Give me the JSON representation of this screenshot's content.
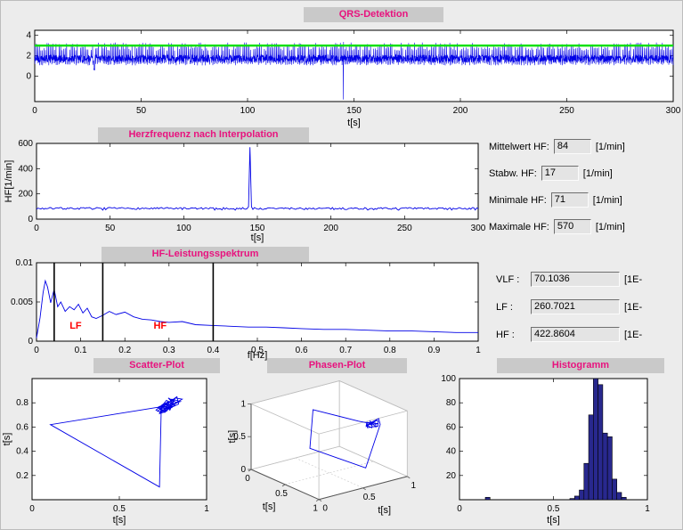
{
  "window": {
    "background": "#ececec",
    "title_strip_bg": "#c9c9c9",
    "title_color": "#e8127e"
  },
  "stats_panel": {
    "rows": [
      {
        "label": "Mittelwert HF:",
        "value": "84",
        "unit": "[1/min]"
      },
      {
        "label": "Stabw. HF:",
        "value": "17",
        "unit": "[1/min]"
      },
      {
        "label": "Minimale HF:",
        "value": "71",
        "unit": "[1/min]"
      },
      {
        "label": "Maximale HF:",
        "value": "570",
        "unit": "[1/min]"
      }
    ]
  },
  "power_panel": {
    "rows": [
      {
        "label": "VLF :",
        "value": "70.1036",
        "unit": "[1E-"
      },
      {
        "label": "LF :",
        "value": "260.7021",
        "unit": "[1E-"
      },
      {
        "label": "HF :",
        "value": "422.8604",
        "unit": "[1E-"
      }
    ]
  },
  "chart_data": [
    {
      "id": "qrs",
      "type": "line",
      "title": "QRS-Detektion",
      "xlabel": "t[s]",
      "xlim": [
        0,
        300
      ],
      "xticks": [
        0,
        50,
        100,
        150,
        200,
        250,
        300
      ],
      "xtick_labels": [
        "0",
        "50",
        "100",
        "150",
        "200",
        "250",
        "300"
      ],
      "ylim": [
        -2.5,
        4.5
      ],
      "yticks": [
        0,
        2,
        4
      ],
      "ytick_labels": [
        "0",
        "2",
        "4"
      ],
      "line_color": "#0000e6",
      "threshold": 3.0,
      "threshold_color": "#00e000",
      "signal": {
        "kind": "ecg",
        "beat_interval_s": 0.714,
        "duration_s": 300,
        "base_band": [
          1.35,
          2.1
        ],
        "peak_band": [
          2.5,
          3.3
        ],
        "dip_band": [
          1.05,
          1.35
        ],
        "artifact_down": {
          "t": 145,
          "v_low": -2.3,
          "v_high": 3.35
        },
        "artifact_dip": {
          "t": 28,
          "v": 0.55
        }
      }
    },
    {
      "id": "hf",
      "type": "line",
      "title": "Herzfrequenz nach Interpolation",
      "xlabel": "t[s]",
      "ylabel": "HF[1/min]",
      "xlim": [
        0,
        300
      ],
      "xticks": [
        0,
        50,
        100,
        150,
        200,
        250,
        300
      ],
      "xtick_labels": [
        "0",
        "50",
        "100",
        "150",
        "200",
        "250",
        "300"
      ],
      "ylim": [
        0,
        600
      ],
      "yticks": [
        0,
        200,
        400,
        600
      ],
      "ytick_labels": [
        "0",
        "200",
        "400",
        "600"
      ],
      "line_color": "#0000e6",
      "signal": {
        "kind": "hr",
        "duration_s": 300,
        "mean_bpm": 84,
        "std_bpm": 17,
        "min_bpm": 71,
        "max_bpm": 570,
        "spike_t": 145
      }
    },
    {
      "id": "spectrum",
      "type": "line",
      "title": "HF-Leistungsspektrum",
      "xlabel": "f[Hz]",
      "xlim": [
        0,
        1
      ],
      "xticks": [
        0,
        0.1,
        0.2,
        0.3,
        0.4,
        0.5,
        0.6,
        0.7,
        0.8,
        0.9,
        1
      ],
      "xtick_labels": [
        "0",
        "0.1",
        "0.2",
        "0.3",
        "0.4",
        "0.5",
        "0.6",
        "0.7",
        "0.8",
        "0.9",
        "1"
      ],
      "ylim": [
        0,
        0.01
      ],
      "yticks": [
        0,
        0.005,
        0.01
      ],
      "ytick_labels": [
        "0",
        "0.005",
        "0.01"
      ],
      "line_color": "#0000e6",
      "vlines": [
        0.04,
        0.15,
        0.4
      ],
      "annotations": [
        {
          "text": "LF",
          "x": 0.075,
          "y": 0.0016,
          "color": "#ff0000"
        },
        {
          "text": "HF",
          "x": 0.265,
          "y": 0.0016,
          "color": "#ff0000"
        }
      ],
      "points": [
        [
          0,
          0.0004
        ],
        [
          0.008,
          0.003
        ],
        [
          0.015,
          0.0062
        ],
        [
          0.02,
          0.0077
        ],
        [
          0.025,
          0.0069
        ],
        [
          0.032,
          0.0049
        ],
        [
          0.04,
          0.0066
        ],
        [
          0.048,
          0.0044
        ],
        [
          0.055,
          0.005
        ],
        [
          0.065,
          0.0038
        ],
        [
          0.075,
          0.0044
        ],
        [
          0.085,
          0.004
        ],
        [
          0.095,
          0.0047
        ],
        [
          0.105,
          0.0036
        ],
        [
          0.115,
          0.0042
        ],
        [
          0.125,
          0.0031
        ],
        [
          0.135,
          0.0029
        ],
        [
          0.15,
          0.0033
        ],
        [
          0.165,
          0.0038
        ],
        [
          0.18,
          0.0034
        ],
        [
          0.2,
          0.0037
        ],
        [
          0.22,
          0.0031
        ],
        [
          0.24,
          0.0028
        ],
        [
          0.26,
          0.0027
        ],
        [
          0.28,
          0.0025
        ],
        [
          0.3,
          0.0024
        ],
        [
          0.33,
          0.0025
        ],
        [
          0.36,
          0.0021
        ],
        [
          0.4,
          0.002
        ],
        [
          0.44,
          0.0019
        ],
        [
          0.48,
          0.0018
        ],
        [
          0.52,
          0.0018
        ],
        [
          0.56,
          0.0017
        ],
        [
          0.6,
          0.0016
        ],
        [
          0.65,
          0.0015
        ],
        [
          0.7,
          0.0015
        ],
        [
          0.75,
          0.0014
        ],
        [
          0.8,
          0.0013
        ],
        [
          0.85,
          0.0013
        ],
        [
          0.9,
          0.0012
        ],
        [
          0.95,
          0.0011
        ],
        [
          1,
          0.0011
        ]
      ]
    },
    {
      "id": "scatter",
      "type": "line",
      "title": "Scatter-Plot",
      "xlabel": "t[s]",
      "ylabel": "t[s]",
      "xlim": [
        0,
        1
      ],
      "xticks": [
        0,
        0.5,
        1
      ],
      "xtick_labels": [
        "0",
        "0.5",
        "1"
      ],
      "ylim": [
        0,
        1
      ],
      "yticks": [
        0.2,
        0.4,
        0.6,
        0.8
      ],
      "ytick_labels": [
        "0.2",
        "0.4",
        "0.6",
        "0.8"
      ],
      "line_color": "#0000e6",
      "points": [
        [
          0.76,
          0.77
        ],
        [
          0.79,
          0.75
        ],
        [
          0.74,
          0.78
        ],
        [
          0.81,
          0.79
        ],
        [
          0.77,
          0.82
        ],
        [
          0.73,
          0.75
        ],
        [
          0.76,
          0.72
        ],
        [
          0.8,
          0.81
        ],
        [
          0.78,
          0.84
        ],
        [
          0.83,
          0.8
        ],
        [
          0.75,
          0.74
        ],
        [
          0.72,
          0.76
        ],
        [
          0.77,
          0.77
        ],
        [
          0.8,
          0.83
        ],
        [
          0.85,
          0.81
        ],
        [
          0.78,
          0.78
        ],
        [
          0.74,
          0.72
        ],
        [
          0.71,
          0.74
        ],
        [
          0.76,
          0.8
        ],
        [
          0.79,
          0.74
        ],
        [
          0.82,
          0.84
        ],
        [
          0.86,
          0.83
        ],
        [
          0.8,
          0.78
        ],
        [
          0.77,
          0.73
        ],
        [
          0.73,
          0.71
        ],
        [
          0.75,
          0.78
        ],
        [
          0.78,
          0.81
        ],
        [
          0.82,
          0.78
        ],
        [
          0.76,
          0.74
        ],
        [
          0.74,
          0.73
        ],
        [
          0.73,
          0.105
        ],
        [
          0.105,
          0.62
        ],
        [
          0.62,
          0.74
        ],
        [
          0.75,
          0.77
        ],
        [
          0.78,
          0.79
        ],
        [
          0.8,
          0.76
        ],
        [
          0.74,
          0.75
        ],
        [
          0.77,
          0.8
        ],
        [
          0.81,
          0.82
        ],
        [
          0.79,
          0.77
        ],
        [
          0.75,
          0.72
        ],
        [
          0.72,
          0.73
        ],
        [
          0.76,
          0.78
        ],
        [
          0.83,
          0.85
        ],
        [
          0.84,
          0.79
        ],
        [
          0.78,
          0.75
        ],
        [
          0.73,
          0.77
        ],
        [
          0.77,
          0.79
        ]
      ]
    },
    {
      "id": "phase",
      "type": "line3d",
      "title": "Phasen-Plot",
      "xlabel": "t[s]",
      "ylabel": "t[s]",
      "zlabel": "t[s]",
      "ticks": [
        0,
        0.5,
        1
      ],
      "tick_labels": [
        "0",
        "0.5",
        "1"
      ],
      "line_color": "#0000e6",
      "points": [
        [
          0.76,
          0.77,
          0.75
        ],
        [
          0.79,
          0.75,
          0.78
        ],
        [
          0.74,
          0.78,
          0.8
        ],
        [
          0.81,
          0.79,
          0.74
        ],
        [
          0.77,
          0.82,
          0.77
        ],
        [
          0.73,
          0.75,
          0.79
        ],
        [
          0.76,
          0.72,
          0.75
        ],
        [
          0.8,
          0.81,
          0.83
        ],
        [
          0.78,
          0.84,
          0.8
        ],
        [
          0.83,
          0.8,
          0.76
        ],
        [
          0.75,
          0.74,
          0.72
        ],
        [
          0.72,
          0.76,
          0.77
        ],
        [
          0.77,
          0.77,
          0.8
        ],
        [
          0.8,
          0.83,
          0.85
        ],
        [
          0.85,
          0.81,
          0.79
        ],
        [
          0.74,
          0.73,
          0.105
        ],
        [
          0.73,
          0.105,
          0.62
        ],
        [
          0.105,
          0.62,
          0.74
        ],
        [
          0.62,
          0.74,
          0.76
        ],
        [
          0.74,
          0.76,
          0.78
        ],
        [
          0.77,
          0.78,
          0.75
        ],
        [
          0.79,
          0.76,
          0.73
        ],
        [
          0.75,
          0.73,
          0.76
        ],
        [
          0.78,
          0.77,
          0.8
        ],
        [
          0.81,
          0.82,
          0.78
        ],
        [
          0.76,
          0.75,
          0.77
        ]
      ]
    },
    {
      "id": "histogram",
      "type": "bar",
      "title": "Histogramm",
      "xlabel": "t[s]",
      "xlim": [
        0,
        1
      ],
      "xticks": [
        0,
        0.5,
        1
      ],
      "xtick_labels": [
        "0",
        "0.5",
        "1"
      ],
      "ylim": [
        0,
        100
      ],
      "yticks": [
        20,
        40,
        60,
        80,
        100
      ],
      "ytick_labels": [
        "20",
        "40",
        "60",
        "80",
        "100"
      ],
      "bar_color": "#28288e",
      "bar_width": 0.025,
      "bars": [
        [
          0.1375,
          2
        ],
        [
          0.5875,
          1
        ],
        [
          0.6125,
          3
        ],
        [
          0.6375,
          8
        ],
        [
          0.6625,
          30
        ],
        [
          0.6875,
          70
        ],
        [
          0.7125,
          100
        ],
        [
          0.7375,
          95
        ],
        [
          0.7625,
          55
        ],
        [
          0.7875,
          52
        ],
        [
          0.8125,
          17
        ],
        [
          0.8375,
          6
        ],
        [
          0.8625,
          2
        ]
      ]
    }
  ]
}
